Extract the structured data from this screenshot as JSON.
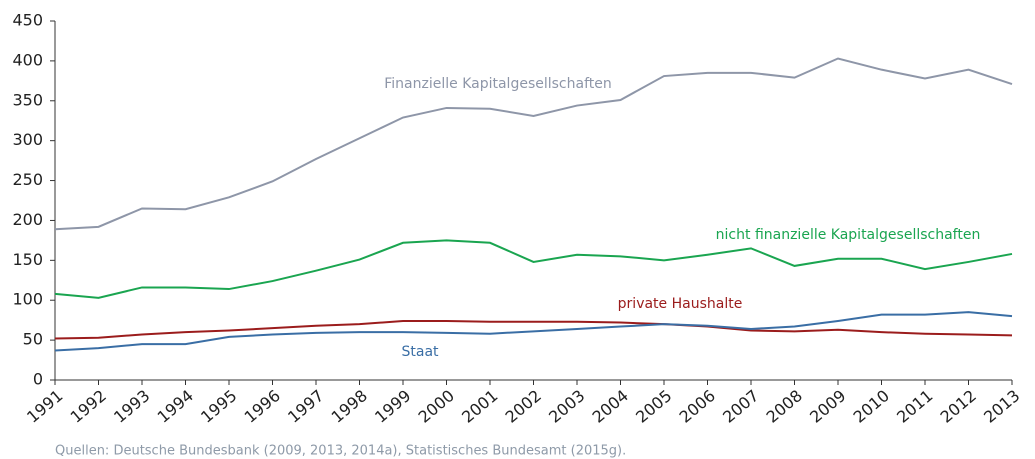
{
  "chart_data": {
    "type": "line",
    "categories": [
      "1991",
      "1992",
      "1993",
      "1994",
      "1995",
      "1996",
      "1997",
      "1998",
      "1999",
      "2000",
      "2001",
      "2002",
      "2003",
      "2004",
      "2005",
      "2006",
      "2007",
      "2008",
      "2009",
      "2010",
      "2011",
      "2012",
      "2013"
    ],
    "series": [
      {
        "name": "Finanzielle Kapitalgesellschaften",
        "color": "#8e96a8",
        "values": [
          189,
          192,
          215,
          214,
          229,
          249,
          277,
          303,
          329,
          341,
          340,
          331,
          344,
          351,
          381,
          385,
          385,
          379,
          403,
          389,
          378,
          389,
          371
        ]
      },
      {
        "name": "nicht finanzielle Kapitalgesellschaften",
        "color": "#1aa550",
        "values": [
          108,
          103,
          116,
          116,
          114,
          124,
          137,
          151,
          172,
          175,
          172,
          148,
          157,
          155,
          150,
          157,
          165,
          143,
          152,
          152,
          139,
          148,
          158
        ]
      },
      {
        "name": "private Haushalte",
        "color": "#9b1c1c",
        "values": [
          52,
          53,
          57,
          60,
          62,
          65,
          68,
          70,
          74,
          74,
          73,
          73,
          73,
          72,
          70,
          67,
          62,
          61,
          63,
          60,
          58,
          57,
          56
        ]
      },
      {
        "name": "Staat",
        "color": "#3a6ea5",
        "values": [
          37,
          40,
          45,
          45,
          54,
          57,
          59,
          60,
          60,
          59,
          58,
          61,
          64,
          67,
          70,
          68,
          64,
          67,
          74,
          82,
          82,
          85,
          80
        ]
      }
    ],
    "ylim": [
      0,
      450
    ],
    "yticks": [
      0,
      50,
      100,
      150,
      200,
      250,
      300,
      350,
      400,
      450
    ],
    "source": "Quellen:  Deutsche Bundesbank (2009, 2013, 2014a), Statistisches Bundesamt (2015g)."
  }
}
